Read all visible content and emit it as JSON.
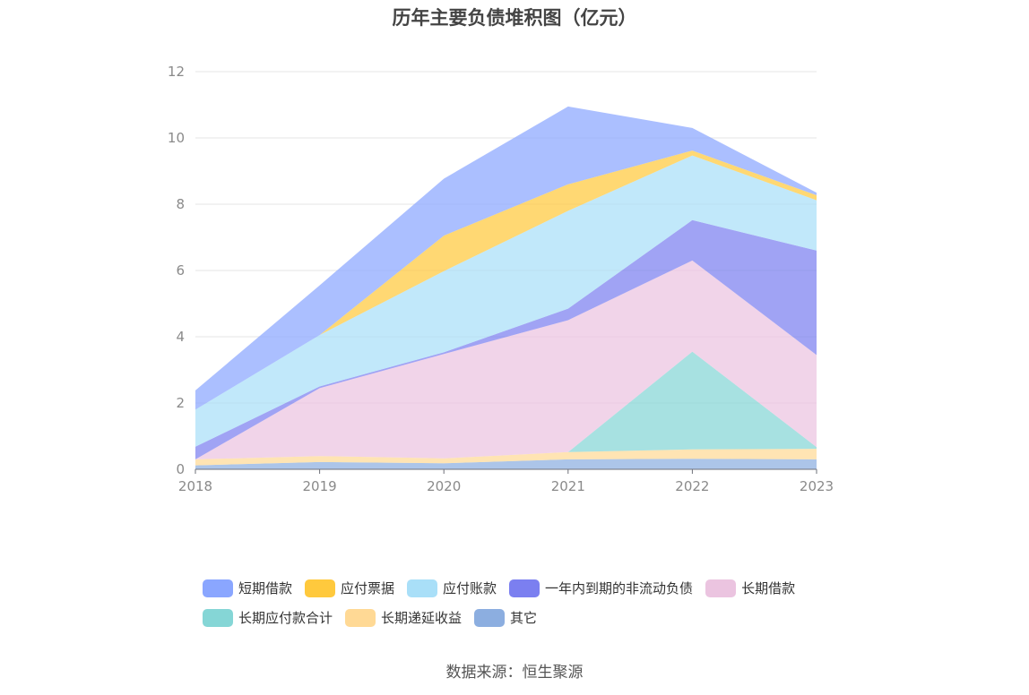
{
  "chart_data": {
    "type": "area",
    "stacked": true,
    "title": "历年主要负债堆积图（亿元）",
    "categories": [
      "2018",
      "2019",
      "2020",
      "2021",
      "2022",
      "2023"
    ],
    "ylim": [
      0,
      12
    ],
    "yticks": [
      0,
      2,
      4,
      6,
      8,
      10,
      12
    ],
    "grid": true,
    "legend_position": "bottom",
    "series": [
      {
        "name": "其它",
        "color": "#8caee0",
        "values": [
          0.12,
          0.22,
          0.18,
          0.3,
          0.32,
          0.3
        ]
      },
      {
        "name": "长期递延收益",
        "color": "#ffd995",
        "values": [
          0.18,
          0.18,
          0.15,
          0.22,
          0.28,
          0.32
        ]
      },
      {
        "name": "长期应付款合计",
        "color": "#85d6d6",
        "values": [
          0,
          0,
          0,
          0,
          2.95,
          0.05
        ]
      },
      {
        "name": "长期借款",
        "color": "#ebc4e0",
        "values": [
          0,
          2.05,
          3.15,
          3.98,
          2.75,
          2.78
        ]
      },
      {
        "name": "一年内到期的非流动负债",
        "color": "#7b7ff0",
        "values": [
          0.38,
          0.05,
          0.05,
          0.35,
          1.22,
          3.15
        ]
      },
      {
        "name": "应付账款",
        "color": "#a9dff8",
        "values": [
          1.12,
          1.55,
          2.45,
          2.95,
          1.95,
          1.52
        ]
      },
      {
        "name": "应付票据",
        "color": "#ffc93d",
        "values": [
          0,
          0,
          1.07,
          0.8,
          0.15,
          0.15
        ]
      },
      {
        "name": "短期借款",
        "color": "#8aa6ff",
        "values": [
          0.58,
          1.5,
          1.72,
          2.35,
          0.68,
          0.08
        ]
      }
    ]
  },
  "legend": {
    "row1": [
      {
        "label": "短期借款",
        "color": "#8aa6ff"
      },
      {
        "label": "应付票据",
        "color": "#ffc93d"
      },
      {
        "label": "应付账款",
        "color": "#a9dff8"
      },
      {
        "label": "一年内到期的非流动负债",
        "color": "#7b7ff0"
      },
      {
        "label": "长期借款",
        "color": "#ebc4e0"
      }
    ],
    "row2": [
      {
        "label": "长期应付款合计",
        "color": "#85d6d6"
      },
      {
        "label": "长期递延收益",
        "color": "#ffd995"
      },
      {
        "label": "其它",
        "color": "#8caee0"
      }
    ]
  },
  "source": "数据来源：恒生聚源"
}
